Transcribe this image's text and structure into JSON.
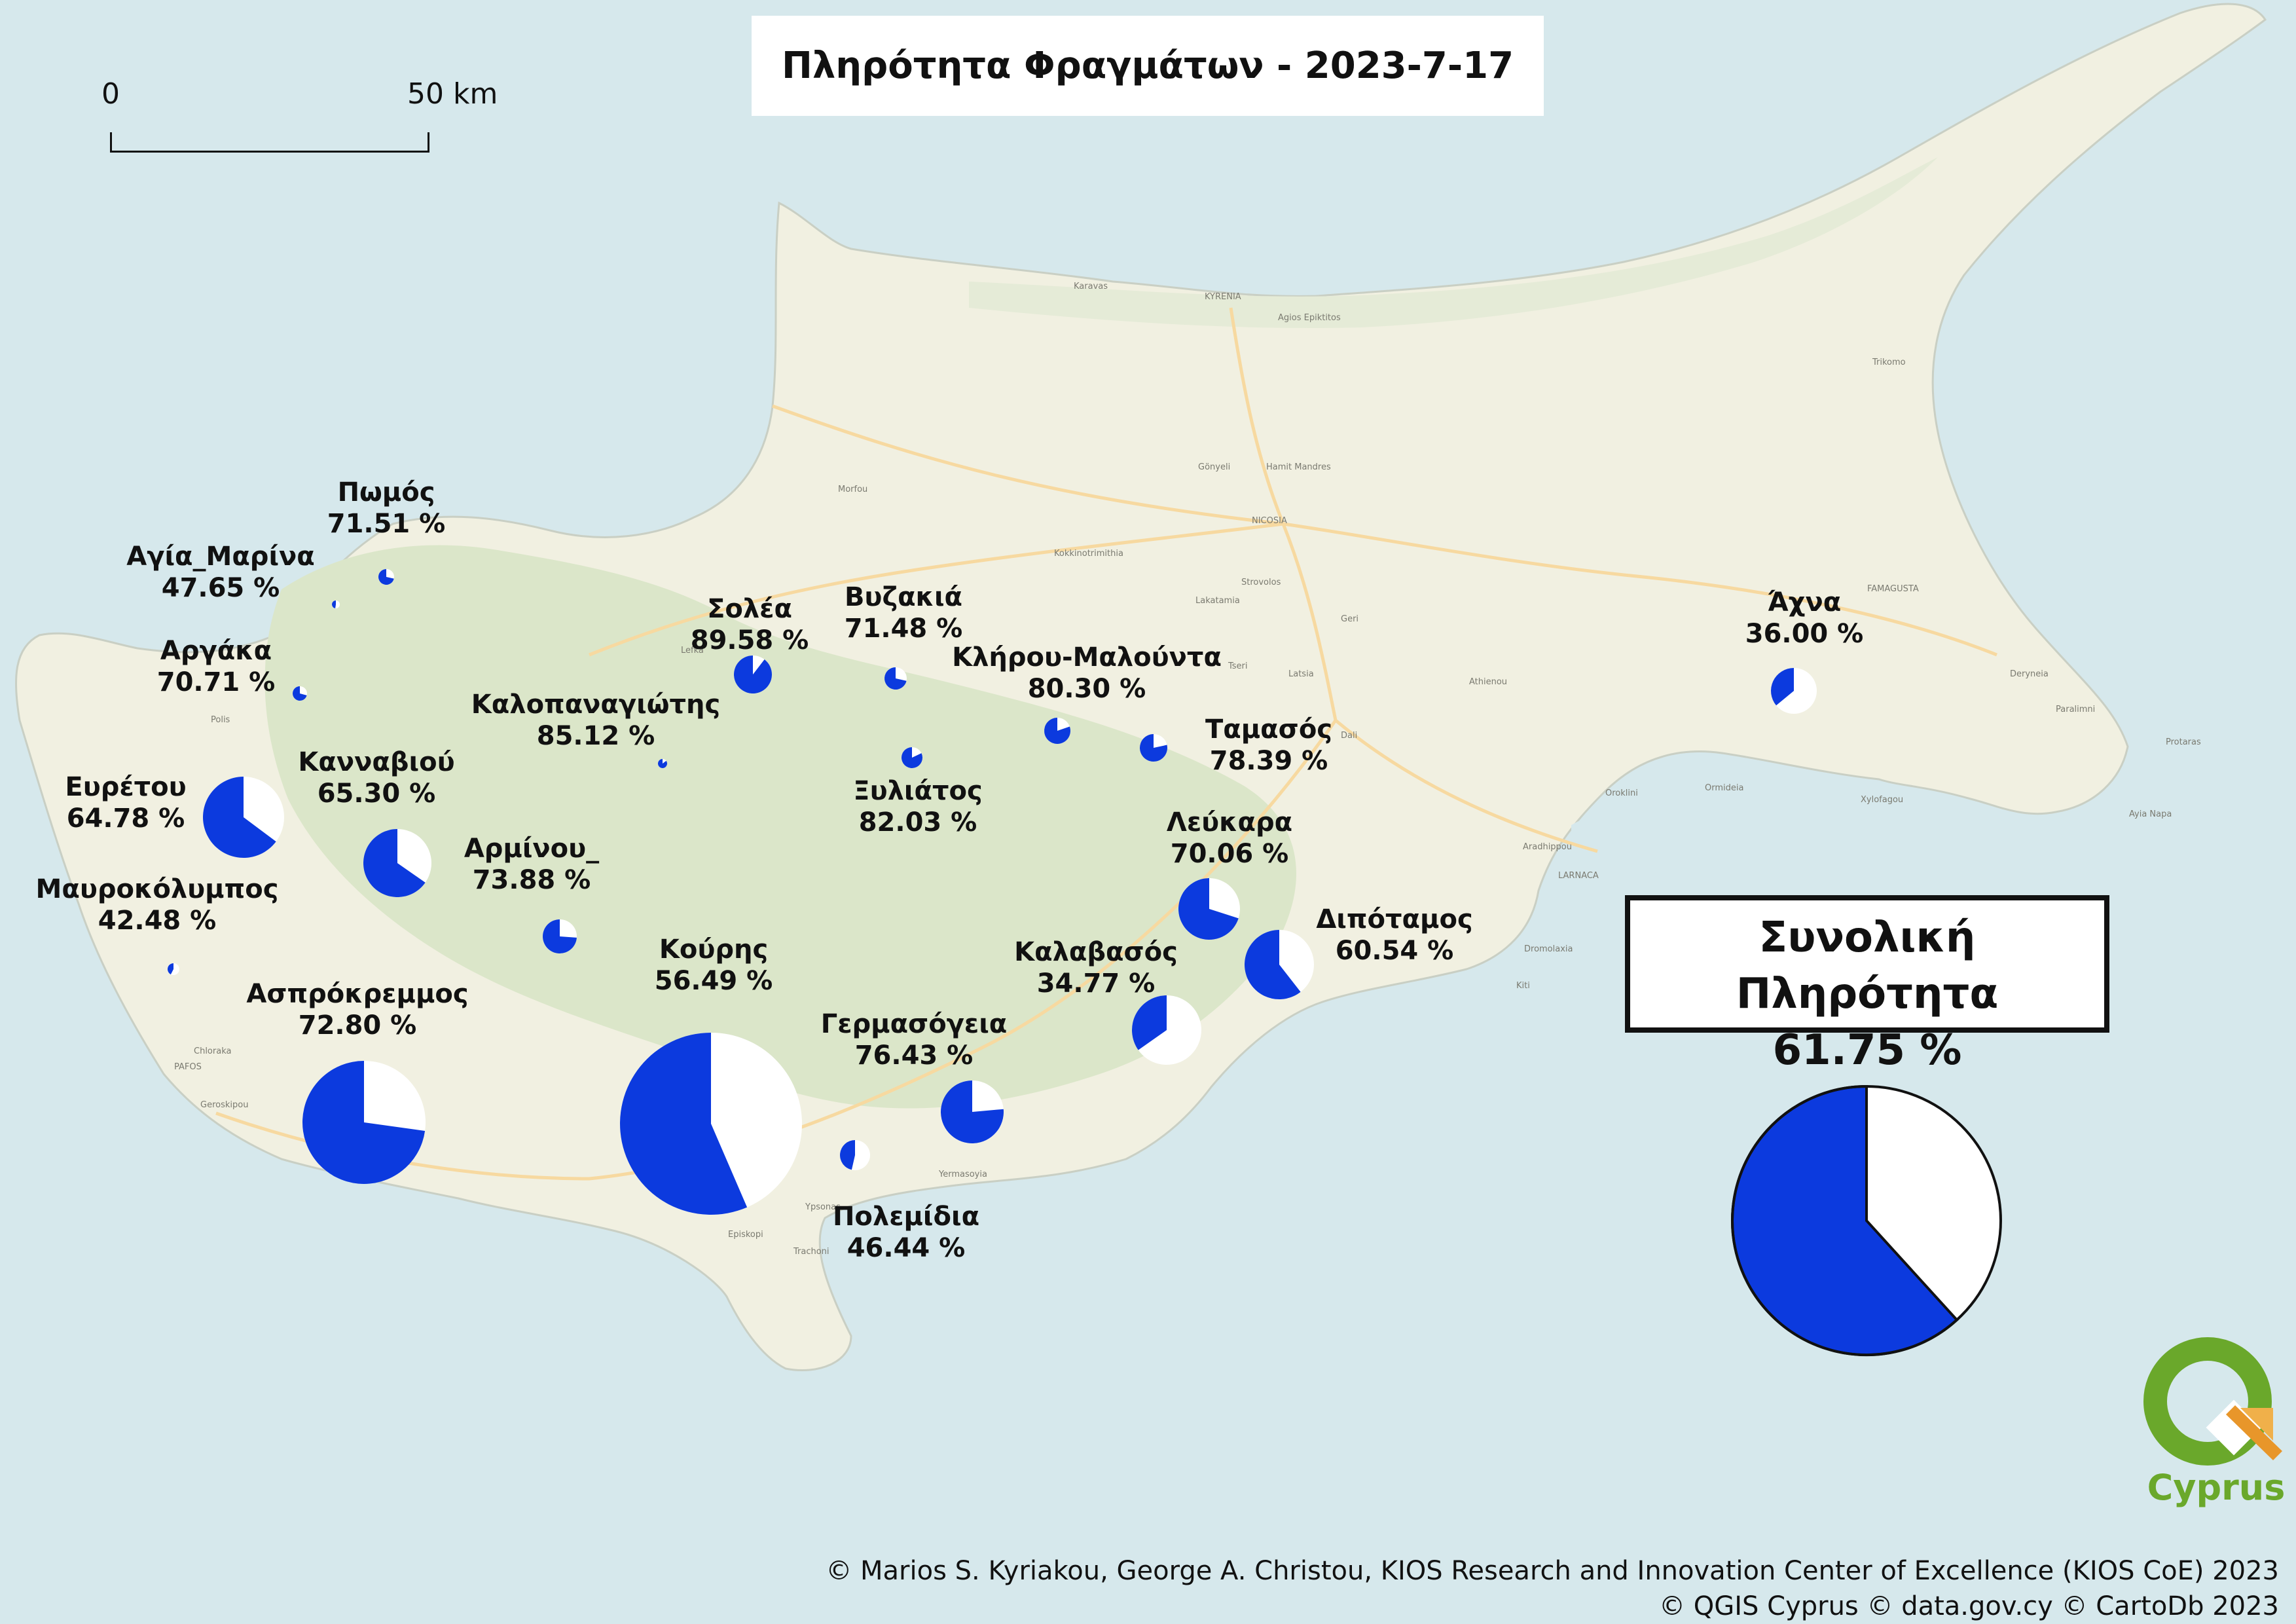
{
  "title": "Πληρότητα Φραγμάτων - 2023-7-17",
  "scale": {
    "zero_label": "0",
    "end_label": "50 km"
  },
  "colors": {
    "fill": "#0c3ade",
    "empty": "#ffffff",
    "land": "#f1f0e1",
    "forest": "#dbe6c9",
    "sea": "#d6e8ec"
  },
  "place_names": {
    "kyrenia": "KYRENIA",
    "nicosia": "NICOSIA",
    "famagusta": "FAMAGUSTA",
    "larnaca": "LARNACA",
    "pafos": "PAFOS",
    "polis": "Polis",
    "karavas": "Karavas",
    "agios_epiktitos": "Agios Epiktitos",
    "trikomo": "Trikomo",
    "morfou": "Morfou",
    "gonyeli": "Gönyeli",
    "hamit_mandres": "Hamit Mandres",
    "kokkinotrimithia": "Kokkinotrimithia",
    "strovolos": "Strovolos",
    "lakatamia": "Lakatamia",
    "geri": "Geri",
    "tseri": "Tseri",
    "latsia": "Latsia",
    "dali": "Dali",
    "athienou": "Athienou",
    "deryneia": "Deryneia",
    "paralimni": "Paralimni",
    "protaras": "Protaras",
    "ayia_napa": "Ayia Napa",
    "xylofagou": "Xylofagou",
    "ormideia": "Ormideia",
    "oroklini": "Oroklini",
    "aradhippou": "Aradhippou",
    "dromolaxia": "Dromolaxia",
    "kiti": "Kiti",
    "chloraka": "Chloraka",
    "geroskipou": "Geroskipou",
    "ypsonas": "Ypsonas",
    "yermasoyia": "Yermasoyia",
    "episkopi": "Episkopi",
    "trachoni": "Trachoni",
    "lefka": "Lefka"
  },
  "dams": [
    {
      "name": "Πωμός",
      "percent": "71.51 %",
      "fill": 71.51
    },
    {
      "name": "Αγία_Μαρίνα",
      "percent": "47.65 %",
      "fill": 47.65
    },
    {
      "name": "Αργάκα",
      "percent": "70.71 %",
      "fill": 70.71
    },
    {
      "name": "Ευρέτου",
      "percent": "64.78 %",
      "fill": 64.78
    },
    {
      "name": "Μαυροκόλυμπος",
      "percent": "42.48 %",
      "fill": 42.48
    },
    {
      "name": "Ασπρόκρεμμος",
      "percent": "72.80 %",
      "fill": 72.8
    },
    {
      "name": "Κανναβιού",
      "percent": "65.30 %",
      "fill": 65.3
    },
    {
      "name": "Καλοπαναγιώτης",
      "percent": "85.12 %",
      "fill": 85.12
    },
    {
      "name": "Αρμίνου_",
      "percent": "73.88 %",
      "fill": 73.88
    },
    {
      "name": "Σολέα",
      "percent": "89.58 %",
      "fill": 89.58
    },
    {
      "name": "Βυζακιά",
      "percent": "71.48 %",
      "fill": 71.48
    },
    {
      "name": "Ξυλιάτος",
      "percent": "82.03 %",
      "fill": 82.03
    },
    {
      "name": "Κλήρου-Μαλούντα",
      "percent": "80.30 %",
      "fill": 80.3
    },
    {
      "name": "Ταμασός",
      "percent": "78.39 %",
      "fill": 78.39
    },
    {
      "name": "Λεύκαρα",
      "percent": "70.06 %",
      "fill": 70.06
    },
    {
      "name": "Διπόταμος",
      "percent": "60.54 %",
      "fill": 60.54
    },
    {
      "name": "Καλαβασός",
      "percent": "34.77 %",
      "fill": 34.77
    },
    {
      "name": "Γερμασόγεια",
      "percent": "76.43 %",
      "fill": 76.43
    },
    {
      "name": "Κούρης",
      "percent": "56.49 %",
      "fill": 56.49
    },
    {
      "name": "Πολεμίδια",
      "percent": "46.44 %",
      "fill": 46.44
    },
    {
      "name": "Άχνα",
      "percent": "36.00 %",
      "fill": 36.0
    }
  ],
  "total": {
    "label": "Συνολική Πληρότητα",
    "percent": "61.75 %",
    "fill": 61.75
  },
  "credits": {
    "line1": "© Marios S. Kyriakou, George A. Christou, KIOS Research and Innovation Center of Excellence (KIOS CoE) 2023",
    "line2": "© QGIS Cyprus © data.gov.cy © CartoDb 2023"
  },
  "logo_text": "Cyprus"
}
